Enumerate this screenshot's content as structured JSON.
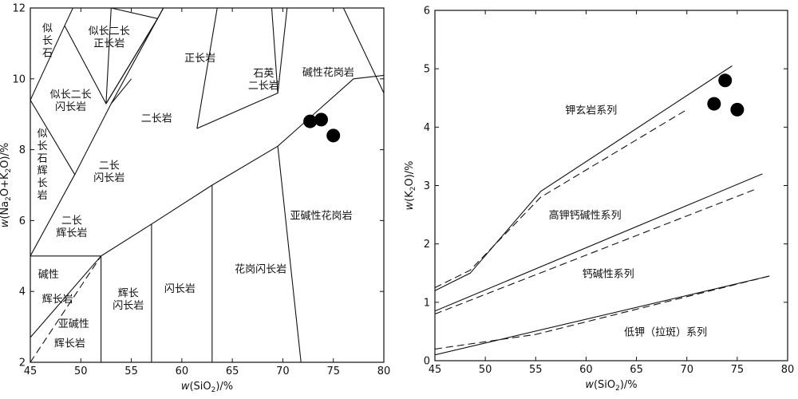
{
  "chart_data": [
    {
      "type": "scatter",
      "xlabel_prefix": "w",
      "xlabel_main": "(SiO",
      "xlabel_sub": "2",
      "xlabel_suffix": ")/%",
      "ylabel_prefix": "w",
      "ylabel_main_1": "(Na",
      "ylabel_sub_1": "2",
      "ylabel_main_2": "O+K",
      "ylabel_sub_2": "2",
      "ylabel_main_3": "O)/%",
      "xlim": [
        45,
        80
      ],
      "ylim": [
        2,
        12
      ],
      "xticks": [
        "45",
        "50",
        "55",
        "60",
        "65",
        "70",
        "75",
        "80"
      ],
      "yticks": [
        "2",
        "4",
        "6",
        "8",
        "10",
        "12"
      ],
      "points": [
        {
          "x": 72.7,
          "y": 8.8
        },
        {
          "x": 73.8,
          "y": 8.85
        },
        {
          "x": 75.0,
          "y": 8.4
        }
      ],
      "fields": [
        {
          "lines": [
            "似",
            "长",
            "石"
          ],
          "x": 46.7,
          "y": 11.1
        },
        {
          "lines": [
            "似长二长",
            "正长岩"
          ],
          "x": 52.8,
          "y": 11.2
        },
        {
          "lines": [
            "正长岩"
          ],
          "x": 61.8,
          "y": 10.6
        },
        {
          "lines": [
            "石英",
            "二长岩"
          ],
          "x": 68.1,
          "y": 10.0
        },
        {
          "lines": [
            "碱性花岗岩"
          ],
          "x": 74.5,
          "y": 10.2
        },
        {
          "lines": [
            "似长二长",
            "闪长岩"
          ],
          "x": 49.0,
          "y": 9.4
        },
        {
          "lines": [
            "二长岩"
          ],
          "x": 57.5,
          "y": 8.9
        },
        {
          "lines": [
            "似",
            "长",
            "石",
            "辉",
            "长",
            "岩"
          ],
          "x": 46.2,
          "y": 7.6
        },
        {
          "lines": [
            "二长",
            "闪长岩"
          ],
          "x": 52.8,
          "y": 7.4
        },
        {
          "lines": [
            "二长",
            "辉长岩"
          ],
          "x": 49.1,
          "y": 5.85
        },
        {
          "lines": [
            "亚碱性花岗岩"
          ],
          "x": 73.8,
          "y": 6.15
        },
        {
          "lines": [
            "花岗闪长岩"
          ],
          "x": 67.8,
          "y": 4.65
        },
        {
          "lines": [
            "闪长岩"
          ],
          "x": 59.8,
          "y": 4.1
        },
        {
          "lines": [
            "辉长",
            "闪长岩"
          ],
          "x": 54.7,
          "y": 3.8
        },
        {
          "lines": [
            "碱性"
          ],
          "x": 46.8,
          "y": 4.5
        },
        {
          "lines": [
            "辉长岩"
          ],
          "x": 47.7,
          "y": 3.8
        },
        {
          "lines": [
            "亚碱性"
          ],
          "x": 49.3,
          "y": 3.1
        },
        {
          "lines": [
            "辉长岩"
          ],
          "x": 48.9,
          "y": 2.55
        }
      ],
      "boundaries": [
        [
          [
            45,
            9.4
          ],
          [
            48.4,
            11.5
          ],
          [
            52.5,
            14
          ]
        ],
        [
          [
            48.4,
            11.5
          ],
          [
            52.5,
            9.3
          ],
          [
            57.6,
            11.7
          ],
          [
            63,
            14.5
          ]
        ],
        [
          [
            45,
            5
          ],
          [
            49.4,
            7.3
          ],
          [
            53,
            9.3
          ],
          [
            57.6,
            11.7
          ]
        ],
        [
          [
            52.5,
            9.3
          ],
          [
            57.6,
            11.7
          ]
        ],
        [
          [
            49.4,
            7.3
          ],
          [
            45,
            9.4
          ]
        ],
        [
          [
            45,
            5
          ],
          [
            52,
            5
          ]
        ],
        [
          [
            52,
            5
          ],
          [
            52,
            2
          ]
        ],
        [
          [
            52,
            5
          ],
          [
            57,
            5.9
          ],
          [
            63,
            7
          ],
          [
            69.5,
            8.1
          ],
          [
            77,
            10
          ],
          [
            80,
            10.1
          ]
        ],
        [
          [
            57,
            5.9
          ],
          [
            57,
            2
          ]
        ],
        [
          [
            63,
            7
          ],
          [
            63,
            2
          ]
        ],
        [
          [
            69.5,
            8.1
          ],
          [
            71.8,
            2
          ]
        ],
        [
          [
            52.5,
            9.3
          ],
          [
            53,
            12
          ],
          [
            57.6,
            11.7
          ]
        ],
        [
          [
            57.6,
            11.7
          ],
          [
            61,
            13.5
          ]
        ],
        [
          [
            61.5,
            8.6
          ],
          [
            63.5,
            12
          ]
        ],
        [
          [
            53,
            9.3
          ],
          [
            55,
            10
          ]
        ],
        [
          [
            61.5,
            8.6
          ],
          [
            69.5,
            9.6
          ],
          [
            71,
            13.5
          ]
        ],
        [
          [
            69.5,
            9.6
          ],
          [
            68.9,
            12
          ]
        ],
        [
          [
            76,
            12
          ],
          [
            80,
            9.6
          ]
        ],
        [
          [
            52,
            5
          ],
          [
            45,
            2.7
          ]
        ]
      ],
      "dashed_boundaries": [
        [
          [
            45,
            2
          ],
          [
            52,
            5
          ]
        ]
      ]
    },
    {
      "type": "line",
      "xlabel_prefix": "w",
      "xlabel_main": "(SiO",
      "xlabel_sub": "2",
      "xlabel_suffix": ")/%",
      "ylabel_prefix": "w",
      "ylabel_main": "(K",
      "ylabel_sub": "2",
      "ylabel_suffix": "O)/%",
      "xlim": [
        45,
        80
      ],
      "ylim": [
        0,
        6
      ],
      "xticks": [
        "45",
        "50",
        "55",
        "60",
        "65",
        "70",
        "75",
        "80"
      ],
      "yticks": [
        "0",
        "1",
        "2",
        "3",
        "4",
        "5",
        "6"
      ],
      "points": [
        {
          "x": 72.7,
          "y": 4.4
        },
        {
          "x": 73.8,
          "y": 4.8
        },
        {
          "x": 75.0,
          "y": 4.3
        }
      ],
      "series_labels": [
        {
          "text": "钾玄岩系列",
          "x": 60.5,
          "y": 4.3
        },
        {
          "text": "高钾钙碱性系列",
          "x": 59.9,
          "y": 2.5
        },
        {
          "text": "钙碱性系列",
          "x": 62.2,
          "y": 1.5
        },
        {
          "text": "低钾（拉斑）系列",
          "x": 67.9,
          "y": 0.5
        }
      ],
      "solid_lines": [
        [
          [
            45,
            1.2
          ],
          [
            48.5,
            1.5
          ],
          [
            55.5,
            2.9
          ],
          [
            74.5,
            5.05
          ]
        ],
        [
          [
            45,
            0.85
          ],
          [
            77.5,
            3.2
          ]
        ],
        [
          [
            45,
            0.1
          ],
          [
            78.2,
            1.45
          ]
        ]
      ],
      "dashed_lines": [
        [
          [
            45,
            1.25
          ],
          [
            48.5,
            1.55
          ],
          [
            55.5,
            2.8
          ],
          [
            70,
            4.3
          ]
        ],
        [
          [
            45,
            0.8
          ],
          [
            77,
            2.95
          ]
        ],
        [
          [
            45,
            0.2
          ],
          [
            55,
            0.45
          ],
          [
            78.2,
            1.45
          ]
        ]
      ]
    }
  ]
}
